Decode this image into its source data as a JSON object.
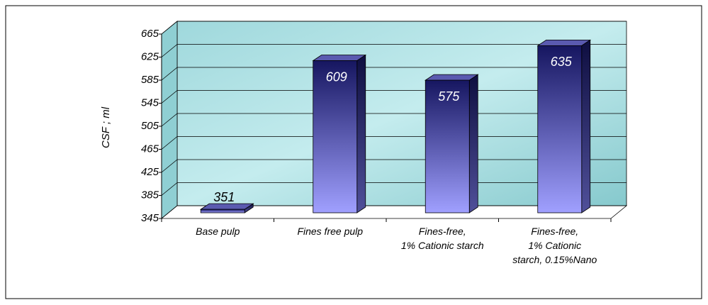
{
  "chart_data": {
    "type": "bar3d",
    "y_label": "CSF ; ml",
    "categories": [
      "Base pulp",
      "Fines free pulp",
      "Fines-free,\n1% Cationic starch",
      "Fines-free,\n1% Cationic\nstarch, 0.15%Nano"
    ],
    "values": [
      351,
      609,
      575,
      635
    ],
    "color": "#3b3b9e",
    "ylim": [
      345,
      665
    ],
    "yticks": [
      345,
      385,
      425,
      465,
      505,
      545,
      585,
      625,
      665
    ],
    "grid": true
  }
}
